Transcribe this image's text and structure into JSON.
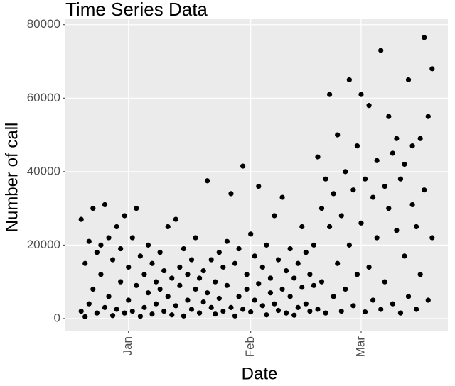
{
  "chart_data": {
    "type": "scatter",
    "title": "Time Series Data",
    "x_label": "Date",
    "y_label": "Number of call",
    "color": "#000000",
    "grid": true,
    "xlim": [
      -16,
      81
    ],
    "ylim": [
      -3300,
      81500
    ],
    "xticks": [
      {
        "value": 0,
        "label": "Jan"
      },
      {
        "value": 31,
        "label": "Feb"
      },
      {
        "value": 59,
        "label": "Mar"
      }
    ],
    "yticks": [
      0,
      20000,
      40000,
      60000,
      80000
    ],
    "x": [
      -12,
      -12,
      -11,
      -11,
      -10,
      -10,
      -9,
      -9,
      -8,
      -8,
      -7,
      -7,
      -6,
      -6,
      -5,
      -5,
      -4,
      -4,
      -3,
      -3,
      -2,
      -2,
      -1,
      -1,
      0,
      0,
      1,
      1,
      2,
      2,
      3,
      3,
      4,
      4,
      5,
      5,
      6,
      6,
      7,
      7,
      8,
      8,
      9,
      9,
      10,
      10,
      11,
      11,
      12,
      12,
      13,
      13,
      14,
      14,
      15,
      15,
      16,
      16,
      17,
      17,
      18,
      18,
      19,
      19,
      20,
      20,
      21,
      21,
      22,
      22,
      23,
      23,
      24,
      24,
      25,
      25,
      26,
      26,
      27,
      27,
      28,
      28,
      29,
      29,
      30,
      30,
      31,
      31,
      32,
      32,
      33,
      33,
      34,
      34,
      35,
      35,
      36,
      36,
      37,
      37,
      38,
      38,
      39,
      39,
      40,
      40,
      41,
      41,
      42,
      42,
      43,
      43,
      44,
      44,
      45,
      45,
      46,
      46,
      47,
      47,
      48,
      48,
      49,
      49,
      50,
      50,
      51,
      51,
      52,
      52,
      53,
      53,
      54,
      54,
      55,
      55,
      56,
      56,
      57,
      57,
      58,
      58,
      59,
      59,
      60,
      60,
      61,
      61,
      62,
      62,
      63,
      63,
      64,
      64,
      65,
      65,
      66,
      66,
      67,
      67,
      68,
      68,
      69,
      69,
      70,
      70,
      71,
      71,
      72,
      72,
      73,
      73,
      74,
      74,
      75,
      75,
      76,
      76,
      77,
      77
    ],
    "values": [
      2000,
      27000,
      15000,
      500,
      21000,
      4000,
      8000,
      30000,
      1500,
      18000,
      12000,
      20000,
      31000,
      3000,
      6000,
      22000,
      16000,
      800,
      2500,
      25000,
      10000,
      19000,
      28000,
      1500,
      5000,
      14000,
      22000,
      2000,
      9000,
      30000,
      17000,
      600,
      3000,
      12000,
      20000,
      7000,
      1200,
      15000,
      10000,
      4000,
      8000,
      18000,
      2000,
      13000,
      25000,
      6000,
      11000,
      1000,
      27000,
      3500,
      14000,
      9000,
      700,
      19000,
      5000,
      12000,
      16000,
      2500,
      22000,
      8000,
      1500,
      11000,
      13000,
      4500,
      37500,
      7000,
      3000,
      16000,
      10000,
      1200,
      18000,
      5500,
      2000,
      14000,
      9000,
      21000,
      34000,
      3000,
      15000,
      700,
      6000,
      19000,
      41500,
      2500,
      12000,
      8000,
      1800,
      23000,
      17000,
      5000,
      36000,
      9500,
      3500,
      14000,
      20000,
      1000,
      11000,
      7000,
      28000,
      4000,
      2200,
      16000,
      8000,
      33000,
      13000,
      1500,
      19000,
      6000,
      900,
      11000,
      15000,
      3000,
      25000,
      8500,
      4000,
      18000,
      12000,
      2000,
      20000,
      9000,
      44000,
      2500,
      30000,
      10000,
      1500,
      38000,
      25000,
      61000,
      34000,
      6000,
      50000,
      15000,
      2000,
      28000,
      40000,
      8000,
      65000,
      20000,
      3500,
      35000,
      47000,
      12000,
      26000,
      61000,
      1800,
      38000,
      58000,
      14000,
      33000,
      5000,
      43000,
      22000,
      73000,
      2500,
      36000,
      10000,
      55000,
      30000,
      4000,
      45000,
      24000,
      49000,
      38000,
      1500,
      17000,
      42000,
      65000,
      6000,
      31000,
      47000,
      2500,
      25000,
      49000,
      12000,
      76500,
      35000,
      5000,
      55000,
      68000,
      22000
    ]
  }
}
